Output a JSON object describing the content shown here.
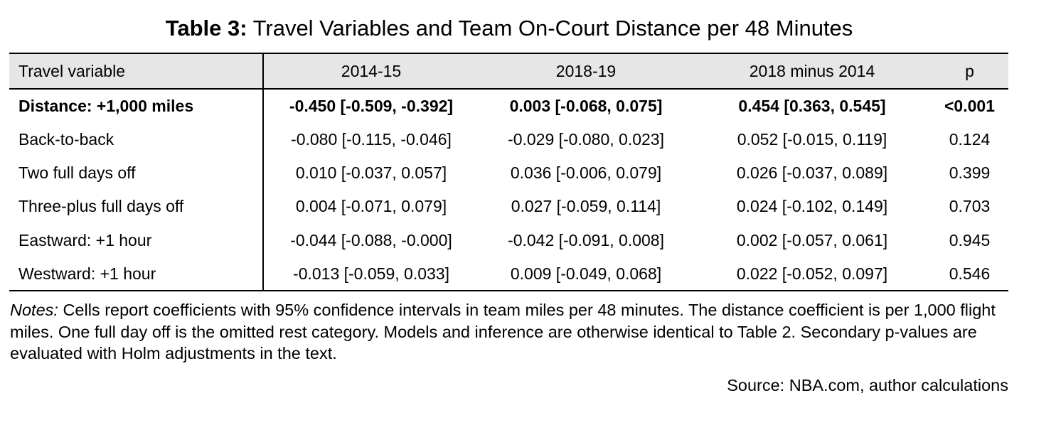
{
  "title": {
    "label": "Table 3:",
    "text": "Travel Variables and Team On-Court Distance per 48 Minutes"
  },
  "table": {
    "headers": [
      "Travel variable",
      "2014-15",
      "2018-19",
      "2018 minus 2014",
      "p"
    ],
    "rows": [
      {
        "cells": [
          "Distance: +1,000 miles",
          "-0.450 [-0.509, -0.392]",
          "0.003 [-0.068, 0.075]",
          "0.454 [0.363, 0.545]",
          "<0.001"
        ]
      },
      {
        "cells": [
          "Back-to-back",
          "-0.080 [-0.115, -0.046]",
          "-0.029 [-0.080, 0.023]",
          "0.052 [-0.015, 0.119]",
          "0.124"
        ]
      },
      {
        "cells": [
          "Two full days off",
          "0.010 [-0.037, 0.057]",
          "0.036 [-0.006, 0.079]",
          "0.026 [-0.037, 0.089]",
          "0.399"
        ]
      },
      {
        "cells": [
          "Three-plus full days off",
          "0.004 [-0.071, 0.079]",
          "0.027 [-0.059, 0.114]",
          "0.024 [-0.102, 0.149]",
          "0.703"
        ]
      },
      {
        "cells": [
          "Eastward: +1 hour",
          "-0.044 [-0.088, -0.000]",
          "-0.042 [-0.091, 0.008]",
          "0.002 [-0.057, 0.061]",
          "0.945"
        ]
      },
      {
        "cells": [
          "Westward: +1 hour",
          "-0.013 [-0.059, 0.033]",
          "0.009 [-0.049, 0.068]",
          "0.022 [-0.052, 0.097]",
          "0.546"
        ]
      }
    ]
  },
  "notes": {
    "label": "Notes:",
    "text": "Cells report coefficients with 95% confidence intervals in team miles per 48 minutes. The distance coefficient is per 1,000 flight miles. One full day off is the omitted rest category. Models and inference are otherwise identical to Table 2. Secondary p-values are evaluated with Holm adjustments in the text."
  },
  "source": "Source: NBA.com, author calculations"
}
